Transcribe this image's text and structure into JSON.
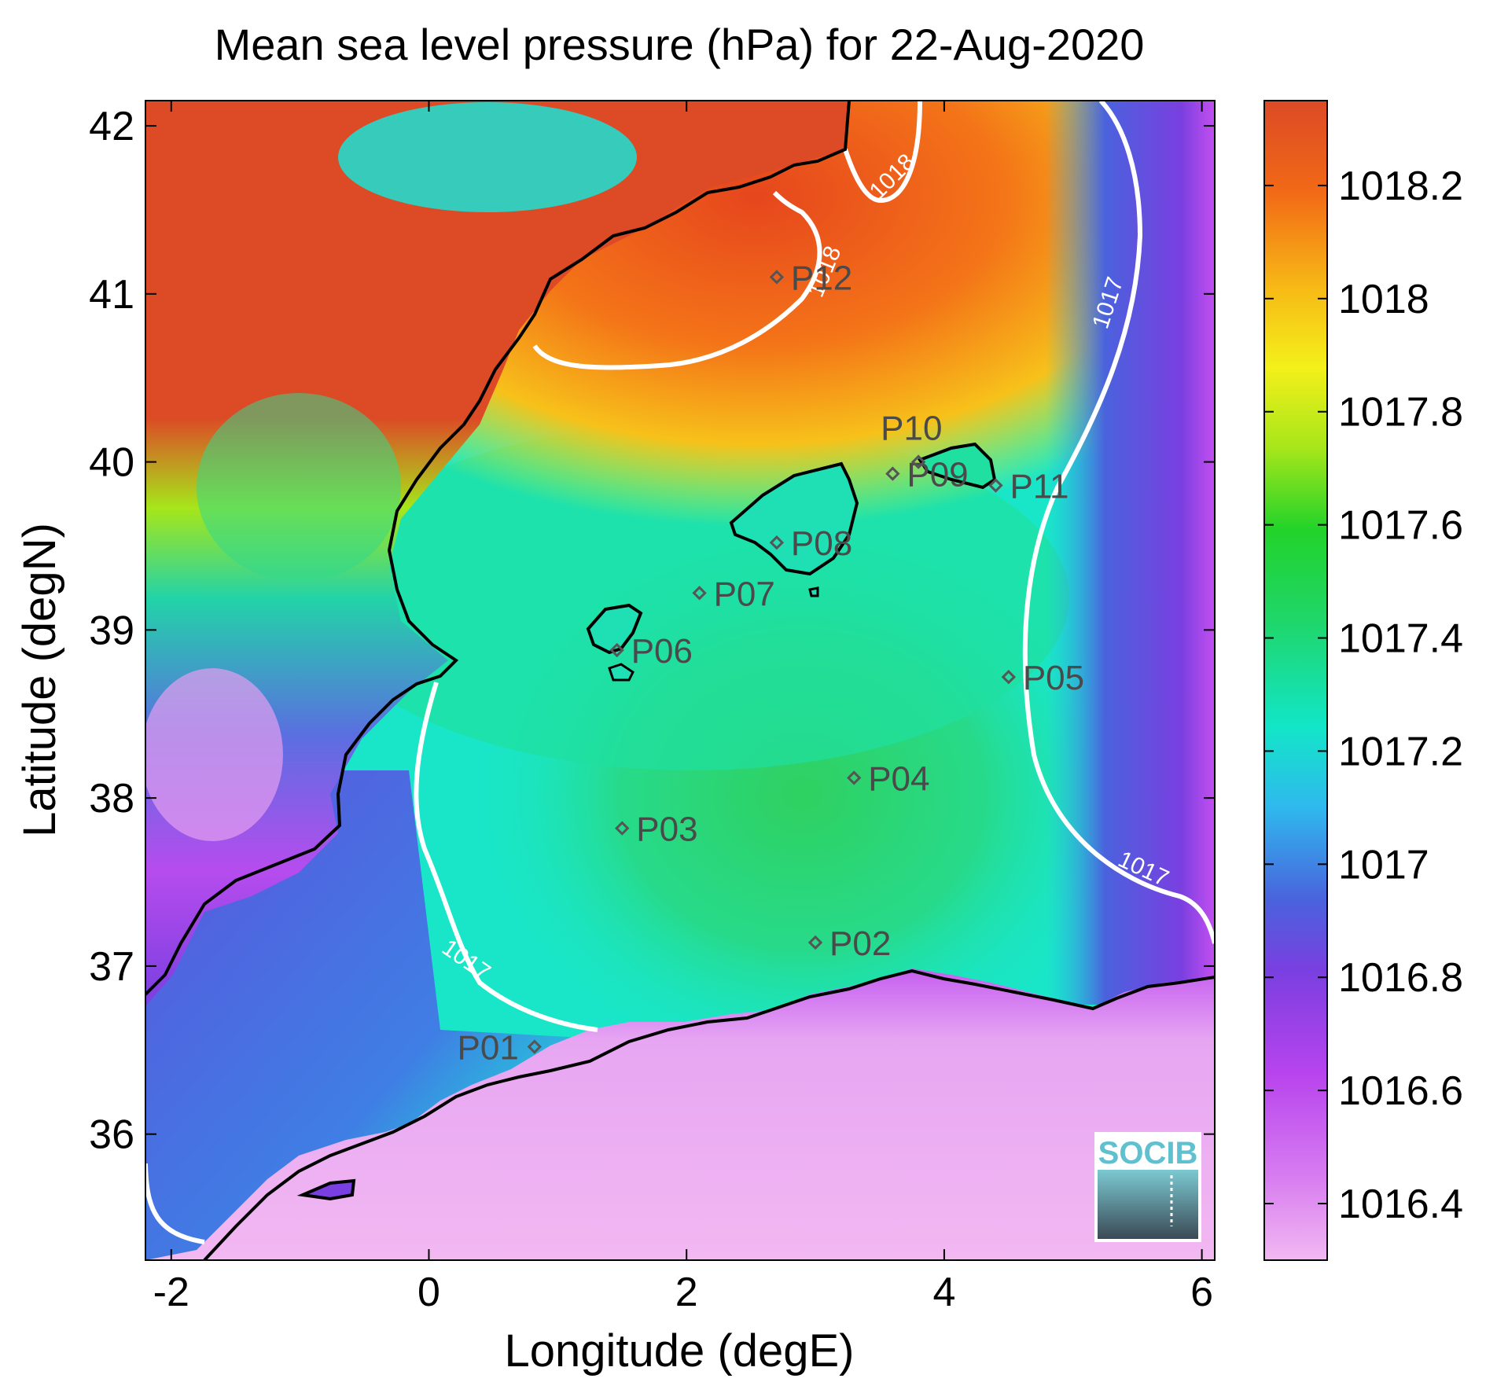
{
  "title": "Mean sea level pressure (hPa) for 22-Aug-2020",
  "axes": {
    "xlabel": "Longitude (degE)",
    "ylabel": "Latitude (degN)",
    "xlim": [
      -2.2,
      6.1
    ],
    "ylim": [
      35.25,
      42.15
    ],
    "xticks": [
      -2,
      0,
      2,
      4,
      6
    ],
    "xtick_labels": [
      "-2",
      "0",
      "2",
      "4",
      "6"
    ],
    "yticks": [
      36,
      37,
      38,
      39,
      40,
      41,
      42
    ],
    "ytick_labels": [
      "36",
      "37",
      "38",
      "39",
      "40",
      "41",
      "42"
    ]
  },
  "colorbar": {
    "range": [
      1016.3,
      1018.35
    ],
    "ticks": [
      1016.4,
      1016.6,
      1016.8,
      1017,
      1017.2,
      1017.4,
      1017.6,
      1017.8,
      1018,
      1018.2
    ],
    "tick_labels": [
      "1016.4",
      "1016.6",
      "1016.8",
      "1017",
      "1017.2",
      "1017.4",
      "1017.6",
      "1017.8",
      "1018",
      "1018.2"
    ],
    "colors_bottom_to_top": [
      "#f2b8f2",
      "#c94ff0",
      "#7a3fe0",
      "#4a62dd",
      "#2fb8ee",
      "#12e6c8",
      "#1fd66b",
      "#22d32a",
      "#a6e61a",
      "#f4f01a",
      "#f7b816",
      "#f26a16",
      "#dc4a26"
    ]
  },
  "contours": [
    {
      "level": 1017,
      "label": "1017"
    },
    {
      "level": 1018,
      "label": "1018"
    }
  ],
  "stations": [
    {
      "id": "P01",
      "lon": 0.82,
      "lat": 36.52
    },
    {
      "id": "P02",
      "lon": 3.0,
      "lat": 37.14
    },
    {
      "id": "P03",
      "lon": 1.5,
      "lat": 37.82
    },
    {
      "id": "P04",
      "lon": 3.3,
      "lat": 38.12
    },
    {
      "id": "P05",
      "lon": 4.5,
      "lat": 38.72
    },
    {
      "id": "P06",
      "lon": 1.46,
      "lat": 38.88
    },
    {
      "id": "P07",
      "lon": 2.1,
      "lat": 39.22
    },
    {
      "id": "P08",
      "lon": 2.7,
      "lat": 39.52
    },
    {
      "id": "P09",
      "lon": 3.6,
      "lat": 39.93
    },
    {
      "id": "P10",
      "lon": 3.8,
      "lat": 40.0
    },
    {
      "id": "P11",
      "lon": 4.4,
      "lat": 39.86
    },
    {
      "id": "P12",
      "lon": 2.7,
      "lat": 41.1
    }
  ],
  "logo": {
    "text": "SOCIB"
  }
}
